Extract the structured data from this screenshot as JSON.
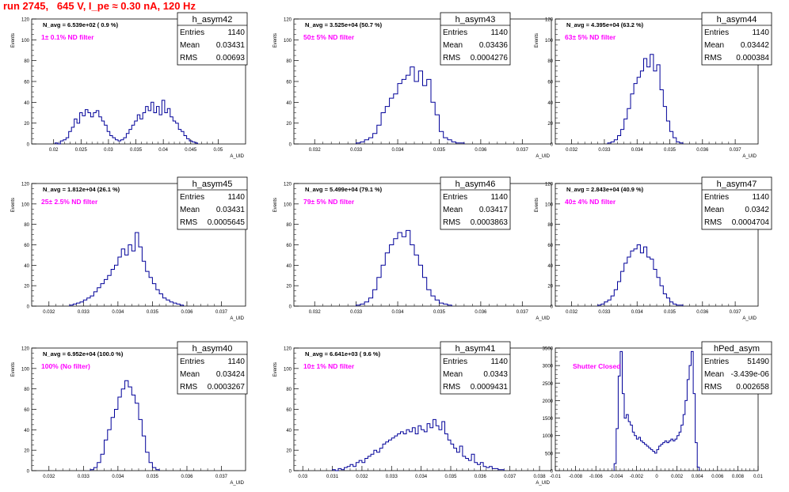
{
  "page_title": "run 2745,   645 V, I_pe ≈ 0.30 nA, 120 Hz",
  "chart_data": [
    {
      "type": "histogram",
      "name": "h_asym42",
      "navg": "N_avg = 6.539e+02 ( 0.9 %)",
      "filter": "1± 0.1% ND filter",
      "stats": {
        "Entries": "1140",
        "Mean": "0.03431",
        "RMS": "0.00693"
      },
      "ylabel": "Events",
      "xlabel": "A_UID",
      "xlim": [
        0.016,
        0.055
      ],
      "ylim": [
        0,
        120
      ],
      "xticks": [
        0.02,
        0.025,
        0.03,
        0.035,
        0.04,
        0.045,
        0.05
      ],
      "xtick_labels": [
        "0.02",
        "0.025",
        "0.03",
        "0.035",
        "0.04",
        "0.045",
        "0.05"
      ],
      "yticks": [
        0,
        20,
        40,
        60,
        80,
        100,
        120
      ],
      "bins": {
        "x": [
          0.0205,
          0.021,
          0.0215,
          0.022,
          0.0225,
          0.023,
          0.0235,
          0.024,
          0.0245,
          0.025,
          0.0255,
          0.026,
          0.0265,
          0.027,
          0.0275,
          0.028,
          0.0285,
          0.029,
          0.0295,
          0.03,
          0.0305,
          0.031,
          0.0315,
          0.032,
          0.0325,
          0.033,
          0.0335,
          0.034,
          0.0345,
          0.035,
          0.0355,
          0.036,
          0.0365,
          0.037,
          0.0375,
          0.038,
          0.0385,
          0.039,
          0.0395,
          0.04,
          0.0405,
          0.041,
          0.0415,
          0.042,
          0.0425,
          0.043,
          0.0435,
          0.044,
          0.0445,
          0.045,
          0.0455,
          0.046
        ],
        "y": [
          1,
          0,
          3,
          4,
          6,
          12,
          16,
          24,
          20,
          30,
          27,
          33,
          30,
          26,
          30,
          32,
          26,
          22,
          18,
          12,
          8,
          6,
          4,
          3,
          4,
          6,
          10,
          14,
          18,
          22,
          28,
          24,
          30,
          36,
          32,
          40,
          30,
          36,
          28,
          42,
          30,
          34,
          26,
          22,
          20,
          14,
          12,
          8,
          5,
          3,
          2,
          1
        ]
      }
    },
    {
      "type": "histogram",
      "name": "h_asym43",
      "navg": "N_avg = 3.525e+04 (50.7 %)",
      "filter": "50± 5% ND filter",
      "stats": {
        "Entries": "1140",
        "Mean": "0.03436",
        "RMS": "0.0004276"
      },
      "ylabel": "Events",
      "xlabel": "A_UID",
      "xlim": [
        0.0315,
        0.0377
      ],
      "ylim": [
        0,
        120
      ],
      "xticks": [
        0.032,
        0.033,
        0.034,
        0.035,
        0.036,
        0.037
      ],
      "xtick_labels": [
        "0.032",
        "0.033",
        "0.034",
        "0.035",
        "0.036",
        "0.037"
      ],
      "yticks": [
        0,
        20,
        40,
        60,
        80,
        100,
        120
      ],
      "bins": {
        "x": [
          0.03305,
          0.03315,
          0.03325,
          0.03335,
          0.03345,
          0.03355,
          0.03365,
          0.03375,
          0.03385,
          0.03395,
          0.03405,
          0.03415,
          0.03425,
          0.03435,
          0.03445,
          0.03455,
          0.03465,
          0.03475,
          0.03485,
          0.03495,
          0.03505,
          0.03515,
          0.03525,
          0.03535,
          0.03545,
          0.03555
        ],
        "y": [
          1,
          2,
          4,
          6,
          10,
          18,
          30,
          36,
          44,
          48,
          58,
          62,
          66,
          74,
          60,
          70,
          56,
          62,
          40,
          28,
          12,
          6,
          4,
          2,
          1,
          1
        ]
      }
    },
    {
      "type": "histogram",
      "name": "h_asym44",
      "navg": "N_avg = 4.395e+04 (63.2 %)",
      "filter": "63± 5% ND filter",
      "stats": {
        "Entries": "1140",
        "Mean": "0.03442",
        "RMS": "0.000384"
      },
      "ylabel": "Events",
      "xlabel": "A_UID",
      "xlim": [
        0.0315,
        0.0377
      ],
      "ylim": [
        0,
        120
      ],
      "xticks": [
        0.032,
        0.033,
        0.034,
        0.035,
        0.036,
        0.037
      ],
      "xtick_labels": [
        "0.032",
        "0.033",
        "0.034",
        "0.035",
        "0.036",
        "0.037"
      ],
      "yticks": [
        0,
        20,
        40,
        60,
        80,
        100,
        120
      ],
      "bins": {
        "x": [
          0.03315,
          0.03325,
          0.03335,
          0.03345,
          0.03355,
          0.03365,
          0.03375,
          0.03385,
          0.03395,
          0.03405,
          0.03415,
          0.03425,
          0.03435,
          0.03445,
          0.03455,
          0.03465,
          0.03475,
          0.03485,
          0.03495,
          0.03505,
          0.03515,
          0.03525,
          0.03535
        ],
        "y": [
          1,
          2,
          4,
          8,
          14,
          24,
          34,
          48,
          58,
          64,
          70,
          82,
          74,
          86,
          70,
          76,
          52,
          36,
          22,
          12,
          6,
          2,
          1
        ]
      }
    },
    {
      "type": "histogram",
      "name": "h_asym45",
      "navg": "N_avg = 1.812e+04 (26.1 %)",
      "filter": "25± 2.5% ND filter",
      "stats": {
        "Entries": "1140",
        "Mean": "0.03431",
        "RMS": "0.0005645"
      },
      "ylabel": "Events",
      "xlabel": "A_UID",
      "xlim": [
        0.0315,
        0.0377
      ],
      "ylim": [
        0,
        120
      ],
      "xticks": [
        0.032,
        0.033,
        0.034,
        0.035,
        0.036,
        0.037
      ],
      "xtick_labels": [
        "0.032",
        "0.033",
        "0.034",
        "0.035",
        "0.036",
        "0.037"
      ],
      "yticks": [
        0,
        20,
        40,
        60,
        80,
        100,
        120
      ],
      "bins": {
        "x": [
          0.03265,
          0.03275,
          0.03285,
          0.03295,
          0.03305,
          0.03315,
          0.03325,
          0.03335,
          0.03345,
          0.03355,
          0.03365,
          0.03375,
          0.03385,
          0.03395,
          0.03405,
          0.03415,
          0.03425,
          0.03435,
          0.03445,
          0.03455,
          0.03465,
          0.03475,
          0.03485,
          0.03495,
          0.03505,
          0.03515,
          0.03525,
          0.03535,
          0.03545,
          0.03555,
          0.03565,
          0.03575,
          0.03585
        ],
        "y": [
          1,
          2,
          3,
          4,
          6,
          8,
          10,
          14,
          18,
          22,
          26,
          30,
          36,
          40,
          48,
          56,
          50,
          60,
          54,
          72,
          58,
          44,
          34,
          28,
          22,
          16,
          12,
          8,
          6,
          4,
          3,
          2,
          1
        ]
      }
    },
    {
      "type": "histogram",
      "name": "h_asym46",
      "navg": "N_avg = 5.499e+04 (79.1 %)",
      "filter": "79± 5% ND filter",
      "stats": {
        "Entries": "1140",
        "Mean": "0.03417",
        "RMS": "0.0003863"
      },
      "ylabel": "Events",
      "xlabel": "A_UID",
      "xlim": [
        0.0315,
        0.0377
      ],
      "ylim": [
        0,
        120
      ],
      "xticks": [
        0.032,
        0.033,
        0.034,
        0.035,
        0.036,
        0.037
      ],
      "xtick_labels": [
        "0.032",
        "0.033",
        "0.034",
        "0.035",
        "0.036",
        "0.037"
      ],
      "yticks": [
        0,
        20,
        40,
        60,
        80,
        100,
        120
      ],
      "bins": {
        "x": [
          0.03305,
          0.03315,
          0.03325,
          0.03335,
          0.03345,
          0.03355,
          0.03365,
          0.03375,
          0.03385,
          0.03395,
          0.03405,
          0.03415,
          0.03425,
          0.03435,
          0.03445,
          0.03455,
          0.03465,
          0.03475,
          0.03485,
          0.03495,
          0.03505,
          0.03515,
          0.03525
        ],
        "y": [
          1,
          2,
          4,
          8,
          16,
          28,
          40,
          52,
          60,
          66,
          72,
          68,
          74,
          60,
          50,
          40,
          28,
          16,
          10,
          6,
          3,
          2,
          1
        ]
      }
    },
    {
      "type": "histogram",
      "name": "h_asym47",
      "navg": "N_avg = 2.843e+04 (40.9 %)",
      "filter": "40± 4% ND filter",
      "stats": {
        "Entries": "1140",
        "Mean": "0.0342",
        "RMS": "0.0004704"
      },
      "ylabel": "Events",
      "xlabel": "A_UID",
      "xlim": [
        0.0315,
        0.0377
      ],
      "ylim": [
        0,
        120
      ],
      "xticks": [
        0.032,
        0.033,
        0.034,
        0.035,
        0.036,
        0.037
      ],
      "xtick_labels": [
        "0.032",
        "0.033",
        "0.034",
        "0.035",
        "0.036",
        "0.037"
      ],
      "yticks": [
        0,
        20,
        40,
        60,
        80,
        100,
        120
      ],
      "bins": {
        "x": [
          0.03285,
          0.03295,
          0.03305,
          0.03315,
          0.03325,
          0.03335,
          0.03345,
          0.03355,
          0.03365,
          0.03375,
          0.03385,
          0.03395,
          0.03405,
          0.03415,
          0.03425,
          0.03435,
          0.03445,
          0.03455,
          0.03465,
          0.03475,
          0.03485,
          0.03495,
          0.03505,
          0.03515,
          0.03525,
          0.03535
        ],
        "y": [
          1,
          2,
          4,
          6,
          10,
          16,
          24,
          34,
          42,
          48,
          54,
          56,
          60,
          52,
          58,
          48,
          46,
          36,
          28,
          20,
          12,
          8,
          4,
          2,
          1,
          1
        ]
      }
    },
    {
      "type": "histogram",
      "name": "h_asym40",
      "navg": "N_avg = 6.952e+04 (100.0 %)",
      "filter": "100% (No filter)",
      "stats": {
        "Entries": "1140",
        "Mean": "0.03424",
        "RMS": "0.0003267"
      },
      "ylabel": "Events",
      "xlabel": "A_UID",
      "xlim": [
        0.0315,
        0.0377
      ],
      "ylim": [
        0,
        120
      ],
      "xticks": [
        0.032,
        0.033,
        0.034,
        0.035,
        0.036,
        0.037
      ],
      "xtick_labels": [
        "0.032",
        "0.033",
        "0.034",
        "0.035",
        "0.036",
        "0.037"
      ],
      "yticks": [
        0,
        20,
        40,
        60,
        80,
        100,
        120
      ],
      "bins": {
        "x": [
          0.03325,
          0.03335,
          0.03345,
          0.03355,
          0.03365,
          0.03375,
          0.03385,
          0.03395,
          0.03405,
          0.03415,
          0.03425,
          0.03435,
          0.03445,
          0.03455,
          0.03465,
          0.03475,
          0.03485,
          0.03495,
          0.03505,
          0.03515
        ],
        "y": [
          1,
          3,
          8,
          16,
          30,
          40,
          52,
          60,
          72,
          80,
          88,
          82,
          74,
          66,
          50,
          34,
          18,
          8,
          3,
          1
        ]
      }
    },
    {
      "type": "histogram",
      "name": "h_asym41",
      "navg": "N_avg = 6.641e+03 ( 9.6 %)",
      "filter": "10± 1% ND filter",
      "stats": {
        "Entries": "1140",
        "Mean": "0.0343",
        "RMS": "0.0009431"
      },
      "ylabel": "Events",
      "xlabel": "A_UID",
      "xlim": [
        0.0297,
        0.0384
      ],
      "ylim": [
        0,
        120
      ],
      "xticks": [
        0.03,
        0.031,
        0.032,
        0.033,
        0.034,
        0.035,
        0.036,
        0.037,
        0.038
      ],
      "xtick_labels": [
        "0.03",
        "0.031",
        "0.032",
        "0.033",
        "0.034",
        "0.035",
        "0.036",
        "0.037",
        "0.038"
      ],
      "yticks": [
        0,
        20,
        40,
        60,
        80,
        100,
        120
      ],
      "bins": {
        "x": [
          0.03105,
          0.03115,
          0.03125,
          0.03135,
          0.03145,
          0.03155,
          0.03165,
          0.03175,
          0.03185,
          0.03195,
          0.03205,
          0.03215,
          0.03225,
          0.03235,
          0.03245,
          0.03255,
          0.03265,
          0.03275,
          0.03285,
          0.03295,
          0.03305,
          0.03315,
          0.03325,
          0.03335,
          0.03345,
          0.03355,
          0.03365,
          0.03375,
          0.03385,
          0.03395,
          0.03405,
          0.03415,
          0.03425,
          0.03435,
          0.03445,
          0.03455,
          0.03465,
          0.03475,
          0.03485,
          0.03495,
          0.03505,
          0.03515,
          0.03525,
          0.03535,
          0.03545,
          0.03555,
          0.03565,
          0.03575,
          0.03585,
          0.03595,
          0.03605,
          0.03615,
          0.03625,
          0.03635,
          0.03645,
          0.03655,
          0.03665,
          0.03675
        ],
        "y": [
          1,
          0,
          2,
          1,
          3,
          4,
          6,
          4,
          8,
          10,
          8,
          12,
          14,
          16,
          20,
          18,
          22,
          26,
          28,
          30,
          32,
          34,
          36,
          38,
          36,
          40,
          38,
          42,
          36,
          44,
          40,
          38,
          46,
          42,
          50,
          44,
          40,
          48,
          36,
          30,
          26,
          22,
          18,
          24,
          14,
          12,
          10,
          16,
          8,
          6,
          8,
          4,
          3,
          4,
          2,
          2,
          1,
          1
        ]
      }
    },
    {
      "type": "histogram",
      "name": "hPed_asym",
      "navg": "",
      "filter": "Shutter Closed",
      "stats": {
        "Entries": "51490",
        "Mean": "-3.439e-06",
        "RMS": "0.002658"
      },
      "ylabel": "",
      "xlabel": "",
      "xlim": [
        -0.01,
        0.01
      ],
      "ylim": [
        0,
        3500
      ],
      "xticks": [
        -0.01,
        -0.008,
        -0.006,
        -0.004,
        -0.002,
        0,
        0.002,
        0.004,
        0.006,
        0.008,
        0.01
      ],
      "xtick_labels": [
        "-0.01",
        "-0.008",
        "-0.006",
        "-0.004",
        "-0.002",
        "0",
        "0.002",
        "0.004",
        "0.006",
        "0.008",
        "0.01"
      ],
      "yticks": [
        0,
        500,
        1000,
        1500,
        2000,
        2500,
        3000,
        3500
      ],
      "ytick_labels": [
        "0",
        "500",
        "1000",
        "1500",
        "2000",
        "2500",
        "3000",
        "3500"
      ],
      "bins": {
        "x": [
          -0.0041,
          -0.0039,
          -0.0037,
          -0.0035,
          -0.0033,
          -0.0031,
          -0.0029,
          -0.0027,
          -0.0025,
          -0.0023,
          -0.0021,
          -0.0019,
          -0.0017,
          -0.0015,
          -0.0013,
          -0.0011,
          -0.0009,
          -0.0007,
          -0.0005,
          -0.0003,
          -0.0001,
          0.0001,
          0.0003,
          0.0005,
          0.0007,
          0.0009,
          0.0011,
          0.0013,
          0.0015,
          0.0017,
          0.0019,
          0.0021,
          0.0023,
          0.0025,
          0.0027,
          0.0029,
          0.0031,
          0.0033,
          0.0035,
          0.0037,
          0.0039,
          0.0041
        ],
        "y": [
          200,
          1200,
          2700,
          3400,
          2200,
          1500,
          1600,
          1400,
          1300,
          1100,
          1000,
          900,
          950,
          850,
          800,
          750,
          700,
          650,
          600,
          550,
          500,
          600,
          700,
          750,
          800,
          850,
          800,
          850,
          900,
          850,
          900,
          1000,
          1100,
          1300,
          1600,
          2000,
          2600,
          3000,
          3400,
          2200,
          800,
          100
        ]
      }
    }
  ]
}
